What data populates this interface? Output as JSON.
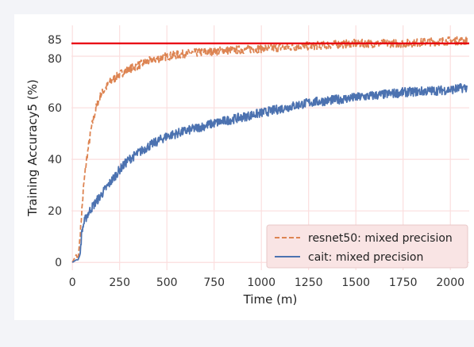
{
  "chart_data": {
    "type": "line",
    "xlabel": "Time (m)",
    "ylabel": "Training Accuracy5 (%)",
    "xlim": [
      -5,
      2100
    ],
    "ylim": [
      -3,
      92
    ],
    "x_ticks": [
      0,
      250,
      500,
      750,
      1000,
      1250,
      1500,
      1750,
      2000
    ],
    "y_ticks": [
      0,
      20,
      40,
      60,
      80,
      85
    ],
    "grid": true,
    "legend_position": "bottom-right",
    "reference_line": {
      "y": 85,
      "color": "#e8000b"
    },
    "series": [
      {
        "name": "resnet50: mixed precision",
        "style": "dashed",
        "color": "#dd8452",
        "x": [
          0,
          20,
          30,
          40,
          50,
          60,
          75,
          100,
          125,
          150,
          200,
          250,
          300,
          400,
          500,
          600,
          750,
          1000,
          1250,
          1500,
          1750,
          2000,
          2090
        ],
        "y": [
          0,
          3,
          1,
          10,
          20,
          30,
          40,
          52,
          60,
          65,
          70,
          73,
          75,
          78,
          80,
          81,
          82,
          83,
          84,
          85,
          85,
          86,
          86
        ]
      },
      {
        "name": "cait: mixed precision",
        "style": "solid",
        "color": "#4c72b0",
        "x": [
          0,
          20,
          30,
          40,
          50,
          60,
          75,
          100,
          150,
          200,
          250,
          300,
          400,
          500,
          600,
          750,
          1000,
          1250,
          1500,
          1750,
          2000,
          2090
        ],
        "y": [
          0,
          1,
          1,
          3,
          12,
          15,
          18,
          21,
          26,
          31,
          36,
          40,
          45,
          49,
          51,
          54,
          58,
          62,
          64,
          66,
          67,
          68
        ]
      }
    ]
  }
}
